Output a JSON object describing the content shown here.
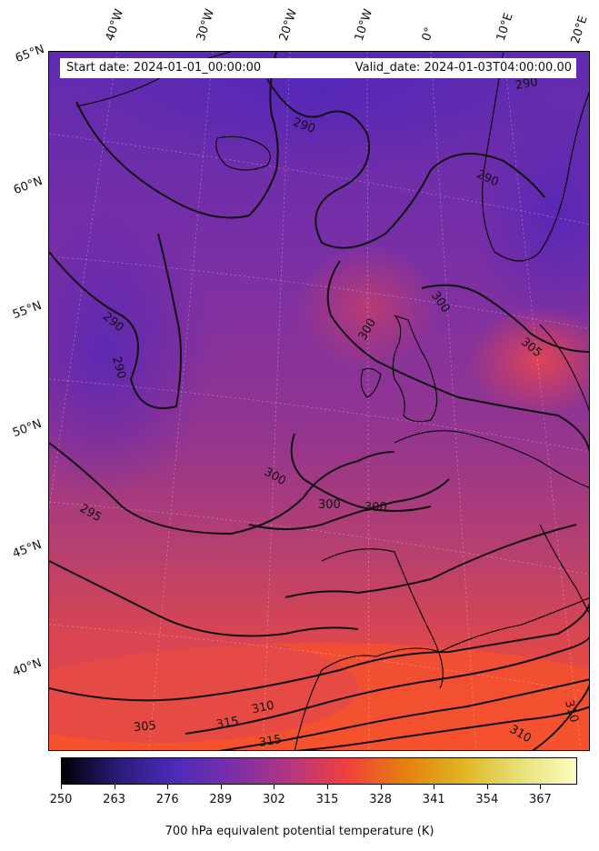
{
  "header": {
    "start_date": "Start date: 2024-01-01_00:00:00",
    "valid_date": "Valid_date: 2024-01-03T04:00:00.00"
  },
  "longitude_labels": [
    "40°W",
    "30°W",
    "20°W",
    "10°W",
    "0°",
    "10°E",
    "20°E"
  ],
  "latitude_labels": [
    "65°N",
    "60°N",
    "55°N",
    "50°N",
    "45°N",
    "40°N"
  ],
  "contour_labels": [
    "290",
    "290",
    "290",
    "290",
    "290",
    "300",
    "300",
    "305",
    "300",
    "300",
    "300",
    "295",
    "305",
    "310",
    "315",
    "315",
    "310",
    "310"
  ],
  "colorbar": {
    "ticks": [
      "250",
      "263",
      "276",
      "289",
      "302",
      "315",
      "328",
      "341",
      "354",
      "367"
    ],
    "title": "700 hPa equivalent potential temperature (K)",
    "colors": [
      "#000004",
      "#2b1b7a",
      "#4e2bb9",
      "#7a2fa8",
      "#b5367f",
      "#f0413c",
      "#e57f10",
      "#e0b522",
      "#e7e077",
      "#fcfdbf"
    ]
  }
}
